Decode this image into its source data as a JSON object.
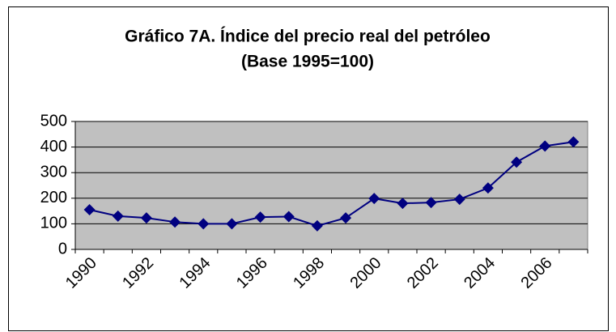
{
  "chart_data": {
    "type": "line",
    "title": "Gráfico 7A. Índice del precio real del petróleo",
    "subtitle": "(Base 1995=100)",
    "categories": [
      "1990",
      null,
      "1992",
      null,
      "1994",
      null,
      "1996",
      null,
      "1998",
      null,
      "2000",
      null,
      "2002",
      null,
      "2004",
      null,
      "2006",
      null
    ],
    "series": [
      {
        "name": "Índice",
        "color": "#000080",
        "values": [
          155,
          130,
          123,
          107,
          100,
          100,
          126,
          128,
          92,
          123,
          199,
          180,
          183,
          196,
          240,
          341,
          404,
          420
        ]
      }
    ],
    "ylim": [
      0,
      500
    ],
    "yticks": [
      0,
      100,
      200,
      300,
      400,
      500
    ],
    "grid": true
  }
}
